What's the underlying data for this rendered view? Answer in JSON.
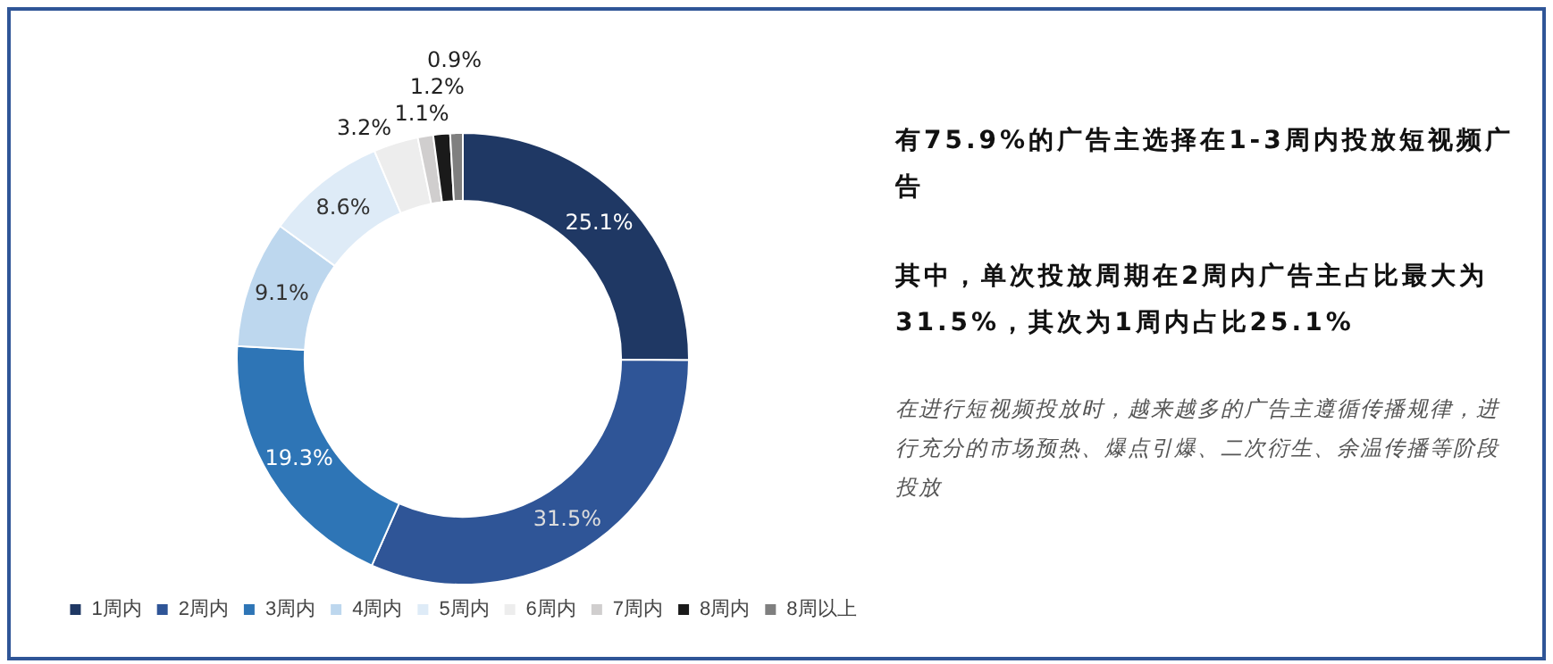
{
  "chart_data": {
    "type": "donut",
    "title": "有75.9%的广告主选择在1-3周内投放短视频广告",
    "subtitle": "其中，单次投放周期在2周内广告主占比最大为31.5%，其次为1周内占比25.1%",
    "annotations": [
      "在进行短视频投放时，越来越多的广告主遵循传播规律，进行充分的市场预热、爆点引爆、二次衍生、余温传播等阶段投放"
    ],
    "categories": [
      "1周内",
      "2周内",
      "3周内",
      "4周内",
      "5周内",
      "6周内",
      "7周内",
      "8周内",
      "8周以上"
    ],
    "values": [
      25.1,
      31.5,
      19.3,
      9.1,
      8.6,
      3.2,
      1.1,
      1.2,
      0.9
    ],
    "colors": [
      "#1f3864",
      "#2f5597",
      "#2e75b6",
      "#bdd7ee",
      "#deebf7",
      "#ededed",
      "#d0cece",
      "#1a1a1a",
      "#7f7f7f"
    ],
    "value_labels": [
      "25.1%",
      "31.5%",
      "19.3%",
      "9.1%",
      "8.6%",
      "3.2%",
      "1.1%",
      "1.2%",
      "0.9%"
    ],
    "legend": "bottom"
  }
}
